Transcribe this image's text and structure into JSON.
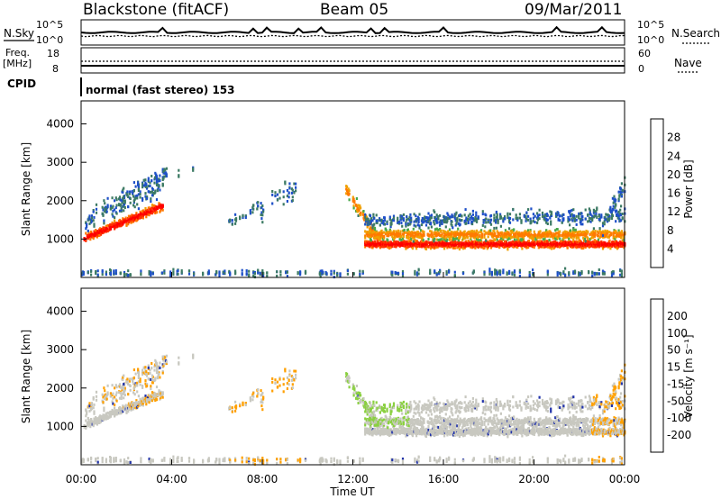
{
  "header": {
    "station": "Blackstone (fitACF)",
    "beam": "Beam 05",
    "date": "09/Mar/2011"
  },
  "top_panels": {
    "nsky_label": "N.Sky",
    "nsearch_label": "N.Search",
    "noise_ticks": [
      "10^5",
      "10^0"
    ],
    "freq_label": "Freq.",
    "freq_unit": "[MHz]",
    "freq_ticks": [
      "18",
      "8"
    ],
    "nave_label": "Nave",
    "nave_ticks": [
      "60",
      "0"
    ],
    "cpid_label": "CPID",
    "cpid_value": "normal (fast stereo) 153"
  },
  "chart_data": [
    {
      "type": "heatmap",
      "panel": "power",
      "title": "",
      "xlabel": "",
      "ylabel": "Slant Range [km]",
      "yticks": [
        "1000",
        "2000",
        "3000",
        "4000"
      ],
      "ylim": [
        0,
        4600
      ],
      "xlim_hours": [
        0,
        24
      ],
      "colorbar_label": "Power [dB]",
      "colorbar_ticks": [
        "4",
        "8",
        "12",
        "16",
        "20",
        "24",
        "28"
      ],
      "colorbar_colors": [
        "#0022ee",
        "#1e50c8",
        "#3c7a64",
        "#4aa84a",
        "#f0a000",
        "#ff7a00",
        "#ff3000",
        "#ff0000"
      ],
      "grid": false
    },
    {
      "type": "heatmap",
      "panel": "velocity",
      "title": "",
      "xlabel": "Time UT",
      "ylabel": "Slant Range [km]",
      "yticks": [
        "1000",
        "2000",
        "3000",
        "4000"
      ],
      "ylim": [
        0,
        4600
      ],
      "xlim_hours": [
        0,
        24
      ],
      "xticks": [
        "00:00",
        "04:00",
        "08:00",
        "12:00",
        "16:00",
        "20:00",
        "00:00"
      ],
      "colorbar_label": "Velocity [m s^-1]",
      "colorbar_ticks": [
        "200",
        "100",
        "50",
        "15",
        "-15",
        "-50",
        "-100",
        "-200"
      ],
      "colorbar_colors": [
        "#2233aa",
        "#2a5a9a",
        "#3c8c5a",
        "#8ad040",
        "#c8c8c0",
        "#ffa000",
        "#ff6000",
        "#ff2000",
        "#ee0000"
      ],
      "grid": false
    }
  ]
}
